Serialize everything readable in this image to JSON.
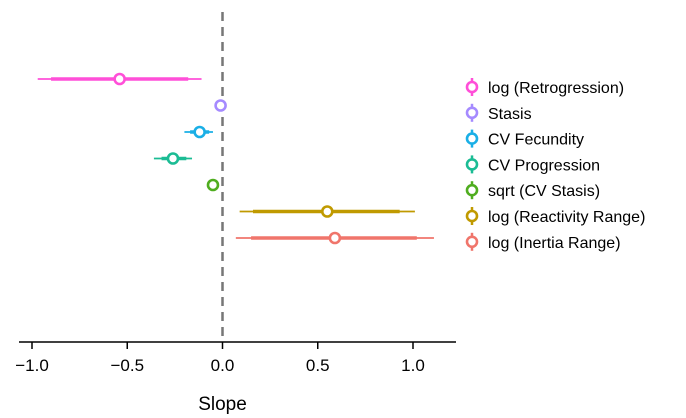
{
  "chart_data": {
    "type": "forest",
    "xlabel": "Slope",
    "xlim": [
      -1.05,
      1.22
    ],
    "xticks": [
      -1.0,
      -0.5,
      0.0,
      0.5,
      1.0
    ],
    "xtick_labels": [
      "−1.0",
      "−0.5",
      "0.0",
      "0.5",
      "1.0"
    ],
    "reference_line": 0.0,
    "reference_line_style": "dashed",
    "grid": false,
    "legend_position": "right",
    "series": [
      {
        "name": "log (Retrogression)",
        "color": "#ff4fd8",
        "estimate": -0.54,
        "inner": [
          -0.9,
          -0.18
        ],
        "outer": [
          -0.97,
          -0.11
        ]
      },
      {
        "name": "Stasis",
        "color": "#a58aff",
        "estimate": -0.01,
        "inner": [
          -0.02,
          0.0
        ],
        "outer": [
          -0.025,
          0.005
        ]
      },
      {
        "name": "CV Fecundity",
        "color": "#1aafe6",
        "estimate": -0.12,
        "inner": [
          -0.17,
          -0.07
        ],
        "outer": [
          -0.2,
          -0.05
        ]
      },
      {
        "name": "CV Progression",
        "color": "#1bbc94",
        "estimate": -0.26,
        "inner": [
          -0.32,
          -0.19
        ],
        "outer": [
          -0.36,
          -0.16
        ]
      },
      {
        "name": "sqrt (CV Stasis)",
        "color": "#4fad1f",
        "estimate": -0.05,
        "inner": [
          -0.07,
          -0.03
        ],
        "outer": [
          -0.08,
          -0.02
        ]
      },
      {
        "name": "log (Reactivity Range)",
        "color": "#c09a00",
        "estimate": 0.55,
        "inner": [
          0.16,
          0.93
        ],
        "outer": [
          0.09,
          1.01
        ]
      },
      {
        "name": "log (Inertia Range)",
        "color": "#f0756b",
        "estimate": 0.59,
        "inner": [
          0.15,
          1.02
        ],
        "outer": [
          0.07,
          1.11
        ]
      }
    ]
  }
}
